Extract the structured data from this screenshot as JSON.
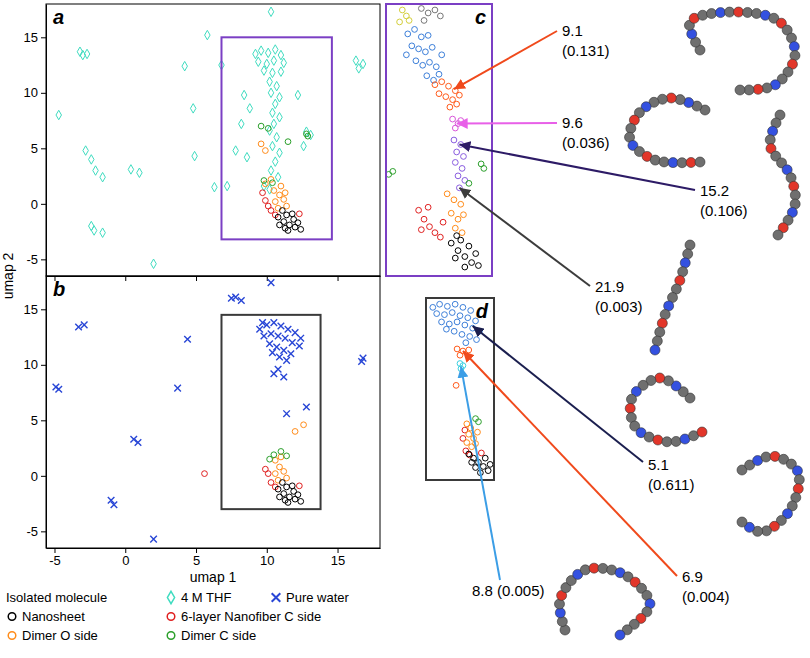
{
  "chart_data": [
    {
      "type": "scatter",
      "label": "a",
      "xlim": [
        -5.6,
        18
      ],
      "ylim": [
        -6.5,
        18
      ],
      "xticks": [
        -5,
        0,
        5,
        10,
        15
      ],
      "yticks": [
        -5,
        0,
        5,
        10,
        15
      ],
      "tick_labels": "y",
      "y_label": "umap 2",
      "series": [
        {
          "color": "#3fdcc0",
          "marker": "diamond",
          "x": [
            9.2,
            9.6,
            10.1,
            10.6,
            11.0,
            9.4,
            10.0,
            10.5,
            11.2,
            9.8,
            10.4,
            11.0,
            10.2,
            10.7,
            10.3,
            10.9,
            10.6,
            10.4,
            10.9,
            10.5,
            10.2,
            10.7,
            10.4,
            10.9,
            10.6,
            10.3,
            10.8,
            9.8,
            10.2,
            8.4,
            8.8,
            8.2,
            7.8,
            8.6,
            12.2,
            12.8,
            13.1,
            12.6,
            7.2,
            6.3,
            -3.0,
            -3.2,
            -2.7,
            -4.7,
            -2.8,
            -2.4,
            -2.1,
            -1.6,
            -2.2,
            -1.6,
            0.4,
            1.0,
            2.0,
            4.2,
            4.8,
            5.8,
            10.3,
            16.3,
            16.8,
            16.5,
            4.9,
            6.8,
            -2.4
          ],
          "y": [
            13.5,
            13.8,
            13.6,
            13.9,
            13.4,
            12.8,
            12.6,
            12.9,
            12.7,
            12.0,
            11.8,
            11.9,
            11.0,
            10.6,
            10.0,
            9.6,
            9.0,
            8.2,
            7.8,
            7.2,
            6.6,
            6.0,
            5.2,
            4.6,
            3.8,
            3.0,
            2.4,
            1.6,
            1.3,
            9.8,
            8.6,
            7.2,
            4.8,
            4.2,
            9.8,
            6.5,
            6.2,
            5.2,
            1.6,
            1.5,
            13.4,
            13.7,
            13.5,
            8.0,
            4.8,
            4.0,
            3.0,
            2.4,
            -2.4,
            -2.6,
            3.1,
            2.8,
            -5.4,
            12.4,
            8.6,
            15.2,
            17.3,
            12.9,
            12.6,
            12.2,
            4.3,
            12.5,
            -2.0
          ]
        },
        {
          "color": "#e02020",
          "marker": "circle",
          "x": [
            10.3,
            10.6,
            9.9,
            10.1,
            9.7,
            12.3
          ],
          "y": [
            -0.6,
            -1.0,
            0.3,
            -0.2,
            1.0,
            -0.9
          ]
        },
        {
          "color": "#ff8c1a",
          "marker": "circle",
          "x": [
            10.6,
            10.9,
            11.2,
            10.5,
            11.0,
            10.8,
            11.4,
            9.9,
            10.3,
            11.3,
            9.6,
            9.9
          ],
          "y": [
            0.2,
            0.8,
            0.4,
            1.2,
            1.6,
            -0.4,
            -0.2,
            1.8,
            2.2,
            1.0,
            5.4,
            4.8
          ]
        },
        {
          "color": "#2ca02c",
          "marker": "circle",
          "x": [
            9.6,
            10.1,
            11.5,
            12.8,
            12.9,
            9.8,
            10.4
          ],
          "y": [
            7.0,
            6.8,
            5.6,
            6.3,
            6.1,
            2.1,
            1.9
          ]
        },
        {
          "color": "#000000",
          "marker": "circle",
          "x": [
            10.8,
            11.2,
            11.6,
            12.0,
            11.4,
            11.9,
            10.9,
            11.5,
            12.2,
            11.1,
            11.8,
            12.4,
            11.3
          ],
          "y": [
            -1.2,
            -1.6,
            -1.9,
            -2.1,
            -1.0,
            -1.4,
            -1.9,
            -2.4,
            -1.7,
            -0.6,
            -0.9,
            -2.3,
            -2.2
          ]
        }
      ]
    },
    {
      "type": "scatter",
      "label": "b",
      "xlim": [
        -5.6,
        18
      ],
      "ylim": [
        -6.5,
        18
      ],
      "xticks": [
        -5,
        0,
        5,
        10,
        15
      ],
      "yticks": [
        -5,
        0,
        5,
        10,
        15
      ],
      "tick_labels": true,
      "x_label": "umap 1",
      "series": [
        {
          "color": "#2846d6",
          "marker": "x",
          "x": [
            9.5,
            10.0,
            10.5,
            11.0,
            11.5,
            12.0,
            9.8,
            10.3,
            10.8,
            11.3,
            11.8,
            12.3,
            10.2,
            10.7,
            11.2,
            11.7,
            10.9,
            11.4,
            10.4,
            12.4,
            9.7,
            10.8,
            10.5,
            11.2,
            7.8,
            8.2,
            7.5,
            -2.9,
            -3.3,
            -4.9,
            -4.7,
            0.6,
            0.9,
            -1.0,
            -0.8,
            2.0,
            3.7,
            10.3,
            16.7,
            16.8,
            12.8,
            11.4,
            4.4
          ],
          "y": [
            13.2,
            13.6,
            13.8,
            13.5,
            13.2,
            12.9,
            12.6,
            12.8,
            12.6,
            12.4,
            12.0,
            11.7,
            11.9,
            11.6,
            11.3,
            11.0,
            10.7,
            10.4,
            11.1,
            12.4,
            13.8,
            9.6,
            9.2,
            8.9,
            16.1,
            15.8,
            16.0,
            13.6,
            13.4,
            8.0,
            7.8,
            3.3,
            3.0,
            -2.2,
            -2.6,
            -5.7,
            7.9,
            17.4,
            10.3,
            10.6,
            6.2,
            5.6,
            12.3
          ]
        },
        {
          "color": "#e02020",
          "marker": "circle",
          "x": [
            10.3,
            10.6,
            10.1,
            9.9,
            5.6,
            12.3
          ],
          "y": [
            -0.6,
            -1.0,
            0.2,
            0.6,
            0.2,
            -0.9
          ]
        },
        {
          "color": "#ff8c1a",
          "marker": "circle",
          "x": [
            10.6,
            10.9,
            11.2,
            10.6,
            11.0,
            11.4,
            10.8,
            12.0,
            12.6
          ],
          "y": [
            0.2,
            0.8,
            0.4,
            1.4,
            1.7,
            -0.2,
            -0.4,
            4.0,
            4.6
          ]
        },
        {
          "color": "#2ca02c",
          "marker": "circle",
          "x": [
            10.5,
            11.0,
            11.4,
            10.2
          ],
          "y": [
            1.9,
            2.2,
            1.8,
            1.5
          ]
        },
        {
          "color": "#000000",
          "marker": "circle",
          "x": [
            10.8,
            11.2,
            11.6,
            12.0,
            11.4,
            11.9,
            10.9,
            11.5,
            12.2,
            11.1,
            11.8,
            12.4,
            11.3
          ],
          "y": [
            -1.2,
            -1.6,
            -1.9,
            -2.1,
            -1.0,
            -1.4,
            -1.9,
            -2.4,
            -1.7,
            -0.6,
            -0.9,
            -2.3,
            -2.2
          ]
        }
      ]
    },
    {
      "type": "scatter",
      "label": "c",
      "xlim": [
        6.8,
        14.6
      ],
      "ylim": [
        -3.2,
        15
      ],
      "tick_labels": false,
      "color": "#7b3fc4",
      "series": [
        {
          "color": "#d4cf3c",
          "marker": "circle",
          "x": [
            8.0,
            8.3,
            7.8,
            8.5
          ],
          "y": [
            14.6,
            14.2,
            13.8,
            13.9
          ]
        },
        {
          "color": "#777777",
          "marker": "circle",
          "x": [
            9.4,
            9.9,
            10.4,
            9.6,
            10.8
          ],
          "y": [
            14.7,
            14.4,
            14.6,
            13.9,
            14.2
          ]
        },
        {
          "color": "#3d7fd9",
          "marker": "circle",
          "x": [
            8.4,
            8.9,
            9.4,
            9.9,
            8.7,
            9.2,
            9.7,
            10.2,
            9.0,
            9.5,
            10.0,
            10.5,
            9.8,
            10.3,
            10.7,
            8.3,
            10.9
          ],
          "y": [
            13.0,
            13.3,
            12.8,
            12.9,
            12.2,
            12.0,
            11.8,
            12.1,
            11.2,
            10.9,
            11.1,
            10.8,
            10.2,
            9.9,
            10.3,
            11.6,
            11.6
          ]
        },
        {
          "color": "#ff5a1a",
          "marker": "circle",
          "x": [
            10.4,
            10.9,
            11.4,
            11.9,
            10.7,
            11.2,
            11.7,
            12.2,
            11.5,
            12.0
          ],
          "y": [
            9.6,
            9.8,
            9.5,
            9.2,
            9.0,
            8.8,
            8.6,
            8.9,
            8.1,
            8.3
          ]
        },
        {
          "color": "#d955d9",
          "marker": "circle",
          "x": [
            11.7,
            12.1,
            11.9,
            12.3
          ],
          "y": [
            7.3,
            7.0,
            6.7,
            7.2
          ]
        },
        {
          "color": "#8a5de0",
          "marker": "circle",
          "x": [
            11.8,
            12.3,
            12.0,
            12.5,
            11.9,
            12.4,
            12.1,
            12.6,
            12.2
          ],
          "y": [
            5.9,
            5.6,
            5.1,
            4.8,
            4.4,
            4.0,
            3.5,
            3.2,
            2.7
          ]
        },
        {
          "color": "#2ca02c",
          "marker": "circle",
          "x": [
            7.3,
            7.0,
            13.8,
            14.0,
            12.9
          ],
          "y": [
            3.8,
            3.6,
            4.3,
            4.0,
            3.0
          ]
        },
        {
          "color": "#e02020",
          "marker": "circle",
          "x": [
            9.2,
            9.6,
            10.0,
            10.4,
            10.8,
            9.9,
            11.0,
            9.4
          ],
          "y": [
            1.2,
            0.6,
            0.1,
            -0.3,
            -0.6,
            1.4,
            0.4,
            -0.1
          ]
        },
        {
          "color": "#ff8c1a",
          "marker": "circle",
          "x": [
            11.8,
            12.3,
            11.6,
            12.1,
            12.5,
            11.9,
            12.4,
            11.3
          ],
          "y": [
            1.9,
            1.6,
            1.0,
            0.6,
            0.9,
            0.0,
            -0.3,
            2.3
          ]
        },
        {
          "color": "#000000",
          "marker": "circle",
          "x": [
            11.6,
            12.1,
            12.6,
            13.1,
            12.3,
            12.9,
            13.4,
            11.9,
            12.6,
            13.6,
            12.0
          ],
          "y": [
            -1.0,
            -1.5,
            -1.9,
            -2.3,
            -0.8,
            -1.2,
            -1.7,
            -2.0,
            -2.6,
            -2.5,
            -0.5
          ]
        }
      ]
    },
    {
      "type": "scatter",
      "label": "d",
      "xlim": [
        6.8,
        13.8
      ],
      "ylim": [
        -3,
        14.5
      ],
      "tick_labels": false,
      "color": "#3a3a3a",
      "series": [
        {
          "color": "#3d7fd9",
          "marker": "circle",
          "x": [
            7.5,
            8.2,
            9.0,
            9.8,
            10.6,
            11.4,
            7.9,
            8.7,
            9.5,
            10.3,
            11.1,
            11.9,
            8.4,
            9.2,
            10.0,
            10.8,
            11.6,
            12.3,
            9.7,
            10.5,
            11.3,
            12.0,
            10.9,
            8.9
          ],
          "y": [
            13.6,
            13.9,
            13.7,
            13.9,
            13.6,
            13.3,
            13.0,
            12.9,
            13.1,
            12.8,
            12.6,
            12.3,
            12.2,
            12.0,
            12.2,
            11.9,
            11.6,
            11.3,
            11.3,
            11.0,
            10.8,
            10.5,
            10.2,
            11.5
          ]
        },
        {
          "color": "#ff5a1a",
          "marker": "circle",
          "x": [
            10.0,
            10.6,
            11.2,
            10.3,
            9.9
          ],
          "y": [
            9.6,
            9.4,
            9.5,
            9.0,
            6.1
          ]
        },
        {
          "color": "#3ad0e0",
          "marker": "circle",
          "x": [
            10.3,
            10.6,
            10.4
          ],
          "y": [
            8.2,
            8.0,
            7.7
          ]
        },
        {
          "color": "#2ca02c",
          "marker": "circle",
          "x": [
            11.9,
            12.2
          ],
          "y": [
            2.9,
            2.6
          ]
        },
        {
          "color": "#e02020",
          "marker": "circle",
          "x": [
            10.8,
            10.6,
            10.9,
            11.3,
            12.5
          ],
          "y": [
            1.8,
            1.0,
            -0.2,
            -0.6,
            -0.4
          ]
        },
        {
          "color": "#ff8c1a",
          "marker": "circle",
          "x": [
            11.0,
            11.4,
            11.2,
            11.7,
            11.0,
            11.5,
            12.1,
            11.9
          ],
          "y": [
            2.4,
            2.0,
            1.4,
            1.0,
            0.6,
            0.2,
            1.6,
            0.5
          ]
        },
        {
          "color": "#000000",
          "marker": "circle",
          "x": [
            11.2,
            11.7,
            12.2,
            12.7,
            13.2,
            11.9,
            12.4,
            11.5,
            12.9,
            13.4
          ],
          "y": [
            -0.5,
            -0.9,
            -1.3,
            -1.7,
            -2.1,
            -1.8,
            -2.3,
            -1.3,
            -0.9,
            -1.5
          ]
        }
      ]
    }
  ],
  "legend_box": {
    "title": "Isolated molecule",
    "entries": [
      {
        "name": "4 M THF",
        "color": "#3fdcc0",
        "marker": "diamond"
      },
      {
        "name": "Pure water",
        "color": "#2846d6",
        "marker": "x"
      },
      {
        "name": "Nanosheet",
        "color": "#000000",
        "marker": "circle"
      },
      {
        "name": "6-layer Nanofiber C side",
        "color": "#e02020",
        "marker": "circle"
      },
      {
        "name": "Dimer O side",
        "color": "#ff8c1a",
        "marker": "circle"
      },
      {
        "name": "Dimer C side",
        "color": "#2ca02c",
        "marker": "circle"
      }
    ]
  },
  "annotations": [
    {
      "panel": "c",
      "text": [
        "9.1",
        "(0.131)"
      ],
      "color": "#f04a1c",
      "x": 11.8,
      "y": 9.3
    },
    {
      "panel": "c",
      "text": [
        "9.6",
        "(0.036)"
      ],
      "color": "#e860e8",
      "x": 12.0,
      "y": 7.0
    },
    {
      "panel": "c",
      "text": [
        "15.2",
        "(0.106)"
      ],
      "color": "#2d1b66",
      "x": 12.2,
      "y": 5.6
    },
    {
      "panel": "c",
      "text": [
        "21.9",
        "(0.003)"
      ],
      "color": "#3c3c3c",
      "x": 12.2,
      "y": 2.7
    },
    {
      "panel": "d",
      "text": [
        "5.1",
        "(0.611)"
      ],
      "color": "#1b1f4f",
      "x": 11.6,
      "y": 11.8
    },
    {
      "panel": "d",
      "text": [
        "6.9",
        "(0.004)"
      ],
      "color": "#f04a1c",
      "x": 10.6,
      "y": 9.4
    },
    {
      "panel": "d",
      "text": [
        "8.8 (0.005)"
      ],
      "color": "#3c9ee6",
      "x": 10.4,
      "y": 7.9
    }
  ]
}
